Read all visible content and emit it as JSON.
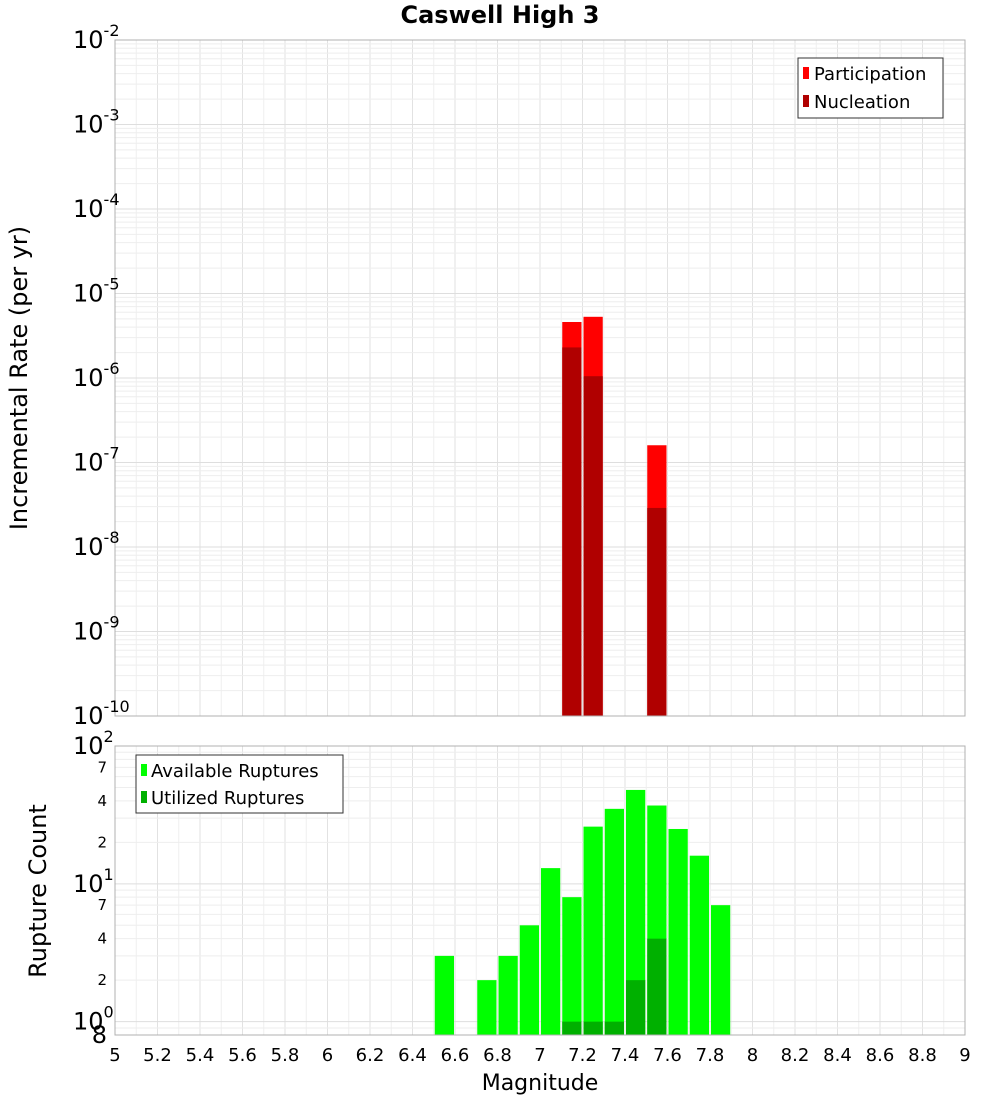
{
  "chart_data": [
    {
      "id": "top",
      "type": "bar",
      "title": "Caswell High 3",
      "xlabel": "",
      "ylabel": "Incremental Rate (per yr)",
      "yscale": "log",
      "ylim_exp": [
        -10,
        -2
      ],
      "tick_labels": [
        {
          "base": "10",
          "exp": "-10"
        },
        {
          "base": "10",
          "exp": "-9"
        },
        {
          "base": "10",
          "exp": "-8"
        },
        {
          "base": "10",
          "exp": "-7"
        },
        {
          "base": "10",
          "exp": "-6"
        },
        {
          "base": "10",
          "exp": "-5"
        },
        {
          "base": "10",
          "exp": "-4"
        },
        {
          "base": "10",
          "exp": "-3"
        },
        {
          "base": "10",
          "exp": "-2"
        }
      ],
      "legend": {
        "position": "top-right",
        "entries": [
          "Participation",
          "Nucleation"
        ]
      },
      "series": [
        {
          "name": "Participation",
          "color": "#ff0000",
          "points": [
            {
              "x": 7.15,
              "y": 4.6e-06
            },
            {
              "x": 7.25,
              "y": 5.3e-06
            },
            {
              "x": 7.55,
              "y": 1.6e-07
            }
          ]
        },
        {
          "name": "Nucleation",
          "color": "#b00000",
          "points": [
            {
              "x": 7.15,
              "y": 2.3e-06
            },
            {
              "x": 7.25,
              "y": 1.05e-06
            },
            {
              "x": 7.55,
              "y": 2.9e-08
            }
          ]
        }
      ]
    },
    {
      "id": "bottom",
      "type": "bar",
      "title": "",
      "xlabel": "Magnitude",
      "ylabel": "Rupture Count",
      "yscale": "log",
      "ylim": [
        0.8,
        100
      ],
      "tick_labels": [
        {
          "base": "10",
          "exp": "0"
        },
        {
          "base": "10",
          "exp": "1"
        },
        {
          "base": "10",
          "exp": "2"
        }
      ],
      "minor_tick_labels": [
        {
          "v": 0.8,
          "label": "8"
        },
        {
          "v": 2,
          "label": "2"
        },
        {
          "v": 4,
          "label": "4"
        },
        {
          "v": 7,
          "label": "7"
        },
        {
          "v": 20,
          "label": "2"
        },
        {
          "v": 40,
          "label": "4"
        },
        {
          "v": 70,
          "label": "7"
        }
      ],
      "legend": {
        "position": "top-left",
        "entries": [
          "Available Ruptures",
          "Utilized Ruptures"
        ]
      },
      "series": [
        {
          "name": "Available Ruptures",
          "color": "#00ff00",
          "points": [
            {
              "x": 6.55,
              "y": 3
            },
            {
              "x": 6.75,
              "y": 2
            },
            {
              "x": 6.85,
              "y": 3
            },
            {
              "x": 6.95,
              "y": 5
            },
            {
              "x": 7.05,
              "y": 13
            },
            {
              "x": 7.15,
              "y": 8
            },
            {
              "x": 7.25,
              "y": 26
            },
            {
              "x": 7.35,
              "y": 35
            },
            {
              "x": 7.45,
              "y": 48
            },
            {
              "x": 7.55,
              "y": 37
            },
            {
              "x": 7.65,
              "y": 25
            },
            {
              "x": 7.75,
              "y": 16
            },
            {
              "x": 7.85,
              "y": 7
            }
          ]
        },
        {
          "name": "Utilized Ruptures",
          "color": "#00b000",
          "points": [
            {
              "x": 7.15,
              "y": 1
            },
            {
              "x": 7.25,
              "y": 1
            },
            {
              "x": 7.35,
              "y": 1
            },
            {
              "x": 7.45,
              "y": 2
            },
            {
              "x": 7.55,
              "y": 4
            }
          ]
        }
      ]
    }
  ],
  "x_axis": {
    "min": 5,
    "max": 9,
    "tick_labels": [
      "5",
      "5.2",
      "5.4",
      "5.6",
      "5.8",
      "6",
      "6.2",
      "6.4",
      "6.6",
      "6.8",
      "7",
      "7.2",
      "7.4",
      "7.6",
      "7.8",
      "8",
      "8.2",
      "8.4",
      "8.6",
      "8.8",
      "9"
    ]
  }
}
